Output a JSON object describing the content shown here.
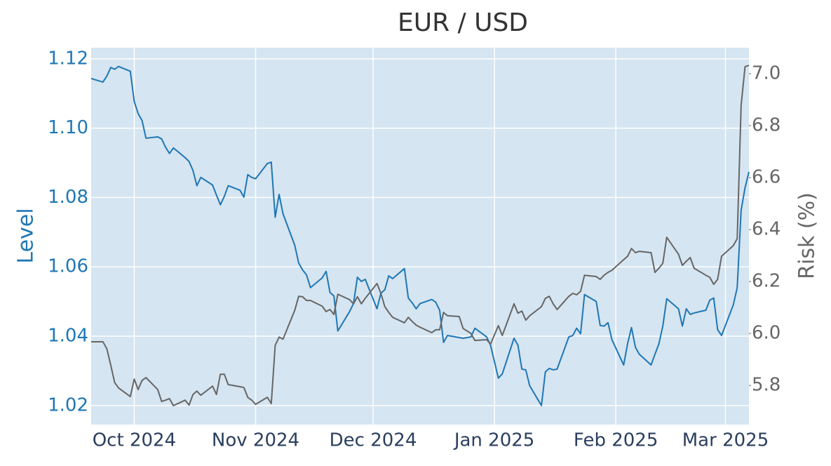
{
  "chart_data": {
    "type": "line",
    "title": "EUR / USD",
    "ylabel": "Level",
    "y2label": "Risk (%)",
    "x": [
      "2024-09-20",
      "2024-09-23",
      "2024-09-24",
      "2024-09-25",
      "2024-09-26",
      "2024-09-27",
      "2024-09-30",
      "2024-10-01",
      "2024-10-02",
      "2024-10-03",
      "2024-10-04",
      "2024-10-07",
      "2024-10-08",
      "2024-10-09",
      "2024-10-10",
      "2024-10-11",
      "2024-10-14",
      "2024-10-15",
      "2024-10-16",
      "2024-10-17",
      "2024-10-18",
      "2024-10-21",
      "2024-10-22",
      "2024-10-23",
      "2024-10-24",
      "2024-10-25",
      "2024-10-28",
      "2024-10-29",
      "2024-10-30",
      "2024-10-31",
      "2024-11-01",
      "2024-11-04",
      "2024-11-05",
      "2024-11-06",
      "2024-11-07",
      "2024-11-08",
      "2024-11-11",
      "2024-11-12",
      "2024-11-13",
      "2024-11-14",
      "2024-11-15",
      "2024-11-18",
      "2024-11-19",
      "2024-11-20",
      "2024-11-21",
      "2024-11-22",
      "2024-11-25",
      "2024-11-26",
      "2024-11-27",
      "2024-11-28",
      "2024-11-29",
      "2024-12-02",
      "2024-12-03",
      "2024-12-04",
      "2024-12-05",
      "2024-12-06",
      "2024-12-09",
      "2024-12-10",
      "2024-12-11",
      "2024-12-12",
      "2024-12-13",
      "2024-12-16",
      "2024-12-17",
      "2024-12-18",
      "2024-12-19",
      "2024-12-20",
      "2024-12-23",
      "2024-12-24",
      "2024-12-26",
      "2024-12-27",
      "2024-12-30",
      "2024-12-31",
      "2025-01-02",
      "2025-01-03",
      "2025-01-06",
      "2025-01-07",
      "2025-01-08",
      "2025-01-09",
      "2025-01-10",
      "2025-01-13",
      "2025-01-14",
      "2025-01-15",
      "2025-01-16",
      "2025-01-17",
      "2025-01-20",
      "2025-01-21",
      "2025-01-22",
      "2025-01-23",
      "2025-01-24",
      "2025-01-27",
      "2025-01-28",
      "2025-01-29",
      "2025-01-30",
      "2025-01-31",
      "2025-02-03",
      "2025-02-04",
      "2025-02-05",
      "2025-02-06",
      "2025-02-07",
      "2025-02-10",
      "2025-02-11",
      "2025-02-12",
      "2025-02-13",
      "2025-02-14",
      "2025-02-17",
      "2025-02-18",
      "2025-02-19",
      "2025-02-20",
      "2025-02-21",
      "2025-02-24",
      "2025-02-25",
      "2025-02-26",
      "2025-02-27",
      "2025-02-28",
      "2025-03-03",
      "2025-03-04",
      "2025-03-05",
      "2025-03-06",
      "2025-03-07"
    ],
    "series": [
      {
        "name": "Level",
        "color": "#1f77b4",
        "axis": "y",
        "values": [
          1.1143,
          1.1133,
          1.115,
          1.1175,
          1.117,
          1.1178,
          1.1164,
          1.1077,
          1.1042,
          1.1022,
          1.0971,
          1.0975,
          1.0969,
          1.0945,
          1.0927,
          1.0943,
          1.0915,
          1.0904,
          1.0878,
          1.0834,
          1.0858,
          1.0836,
          1.0807,
          1.0779,
          1.0803,
          1.0834,
          1.0821,
          1.0801,
          1.0866,
          1.0858,
          1.0854,
          1.0898,
          1.0902,
          1.0743,
          1.0809,
          1.0753,
          1.0662,
          1.0611,
          1.0591,
          1.0577,
          1.054,
          1.0568,
          1.0587,
          1.0526,
          1.0516,
          1.0415,
          1.0471,
          1.0494,
          1.057,
          1.0558,
          1.0564,
          1.0479,
          1.0524,
          1.0534,
          1.0574,
          1.0566,
          1.0595,
          1.051,
          1.0496,
          1.0479,
          1.0494,
          1.0506,
          1.0498,
          1.0475,
          1.0382,
          1.0402,
          1.0396,
          1.0394,
          1.0398,
          1.0423,
          1.0398,
          1.0374,
          1.0279,
          1.0291,
          1.0394,
          1.0374,
          1.0305,
          1.0303,
          1.0257,
          1.02,
          1.0297,
          1.0307,
          1.0303,
          1.0305,
          1.0398,
          1.0402,
          1.0423,
          1.0407,
          1.052,
          1.05,
          1.0431,
          1.0429,
          1.0439,
          1.039,
          1.0317,
          1.0378,
          1.0425,
          1.0368,
          1.0348,
          1.0317,
          1.0348,
          1.0378,
          1.0429,
          1.0508,
          1.0479,
          1.0429,
          1.0479,
          1.0463,
          1.0467,
          1.0475,
          1.0504,
          1.051,
          1.0419,
          1.0402,
          1.049,
          1.054,
          1.0763,
          1.0828,
          1.0874
        ]
      },
      {
        "name": "Risk (%)",
        "color": "#666666",
        "axis": "y2",
        "values": [
          5.968,
          5.968,
          5.941,
          5.878,
          5.811,
          5.79,
          5.757,
          5.824,
          5.784,
          5.819,
          5.83,
          5.784,
          5.738,
          5.743,
          5.749,
          5.722,
          5.743,
          5.724,
          5.765,
          5.778,
          5.762,
          5.797,
          5.765,
          5.843,
          5.843,
          5.803,
          5.795,
          5.792,
          5.754,
          5.743,
          5.727,
          5.754,
          5.73,
          5.954,
          5.986,
          5.978,
          6.089,
          6.143,
          6.141,
          6.127,
          6.127,
          6.105,
          6.084,
          6.092,
          6.073,
          6.151,
          6.13,
          6.114,
          6.141,
          6.114,
          6.135,
          6.192,
          6.154,
          6.103,
          6.081,
          6.062,
          6.041,
          6.062,
          6.046,
          6.032,
          6.024,
          6.003,
          6.014,
          6.014,
          6.081,
          6.068,
          6.065,
          6.019,
          6.0,
          5.973,
          5.976,
          5.959,
          6.03,
          5.992,
          6.114,
          6.078,
          6.086,
          6.051,
          6.068,
          6.103,
          6.135,
          6.143,
          6.114,
          6.092,
          6.143,
          6.154,
          6.149,
          6.162,
          6.224,
          6.219,
          6.208,
          6.224,
          6.235,
          6.243,
          6.284,
          6.297,
          6.327,
          6.311,
          6.316,
          6.311,
          6.235,
          6.251,
          6.27,
          6.37,
          6.305,
          6.262,
          6.278,
          6.292,
          6.251,
          6.224,
          6.216,
          6.189,
          6.208,
          6.297,
          6.338,
          6.365,
          6.878,
          7.027,
          7.032
        ]
      }
    ],
    "xlim": [
      "2024-09-20",
      "2025-03-07"
    ],
    "xticks": [
      {
        "value": "2024-10-01",
        "label": "Oct 2024"
      },
      {
        "value": "2024-11-01",
        "label": "Nov 2024"
      },
      {
        "value": "2024-12-01",
        "label": "Dec 2024"
      },
      {
        "value": "2025-01-01",
        "label": "Jan 2025"
      },
      {
        "value": "2025-02-01",
        "label": "Feb 2025"
      },
      {
        "value": "2025-03-01",
        "label": "Mar 2025"
      }
    ],
    "ylim": [
      1.0145,
      1.1232
    ],
    "yticks": [
      1.02,
      1.04,
      1.06,
      1.08,
      {
        "value": 1.1,
        "label": "1.10"
      },
      1.12
    ],
    "y2lim": [
      5.649,
      7.1
    ],
    "y2ticks": [
      5.8,
      {
        "value": 6,
        "label": "6.0"
      },
      6.2,
      6.4,
      6.6,
      6.8,
      {
        "value": 7,
        "label": "7.0"
      }
    ],
    "grid": true
  }
}
